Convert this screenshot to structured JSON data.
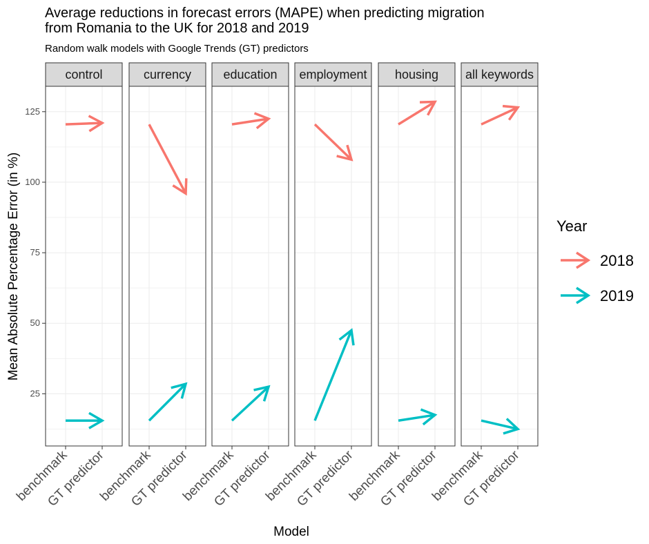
{
  "chart_data": {
    "type": "arrow-facet",
    "title": "Average reductions in forecast errors (MAPE) when predicting migration from Romania to the UK for 2018 and 2019",
    "title_lines": [
      "Average reductions in forecast errors (MAPE) when predicting migration",
      "from Romania to the UK for 2018 and 2019"
    ],
    "subtitle": "Random walk models with Google Trends (GT) predictors",
    "xlabel": "Model",
    "ylabel": "Mean Absolute Percentage Error (in %)",
    "x_categories": [
      "benchmark",
      "GT predictor"
    ],
    "y_ticks": [
      25,
      50,
      75,
      100,
      125
    ],
    "ylim": [
      6.5,
      134
    ],
    "grid": true,
    "legend": {
      "title": "Year",
      "position": "right",
      "entries": [
        {
          "label": "2018",
          "color": "#F8766D"
        },
        {
          "label": "2019",
          "color": "#00BFC4"
        }
      ]
    },
    "facets": [
      {
        "name": "control",
        "series": [
          {
            "year": "2018",
            "benchmark": 120.5,
            "gt": 121
          },
          {
            "year": "2019",
            "benchmark": 15.5,
            "gt": 15.5
          }
        ]
      },
      {
        "name": "currency",
        "series": [
          {
            "year": "2018",
            "benchmark": 120.5,
            "gt": 96
          },
          {
            "year": "2019",
            "benchmark": 15.5,
            "gt": 28.5
          }
        ]
      },
      {
        "name": "education",
        "series": [
          {
            "year": "2018",
            "benchmark": 120.5,
            "gt": 122.5
          },
          {
            "year": "2019",
            "benchmark": 15.5,
            "gt": 27.5
          }
        ]
      },
      {
        "name": "employment",
        "series": [
          {
            "year": "2018",
            "benchmark": 120.5,
            "gt": 108
          },
          {
            "year": "2019",
            "benchmark": 15.5,
            "gt": 47.5
          }
        ]
      },
      {
        "name": "housing",
        "series": [
          {
            "year": "2018",
            "benchmark": 120.5,
            "gt": 128.5
          },
          {
            "year": "2019",
            "benchmark": 15.5,
            "gt": 17.5
          }
        ]
      },
      {
        "name": "all keywords",
        "series": [
          {
            "year": "2018",
            "benchmark": 120.5,
            "gt": 126.5
          },
          {
            "year": "2019",
            "benchmark": 15.5,
            "gt": 12.5
          }
        ]
      }
    ]
  }
}
